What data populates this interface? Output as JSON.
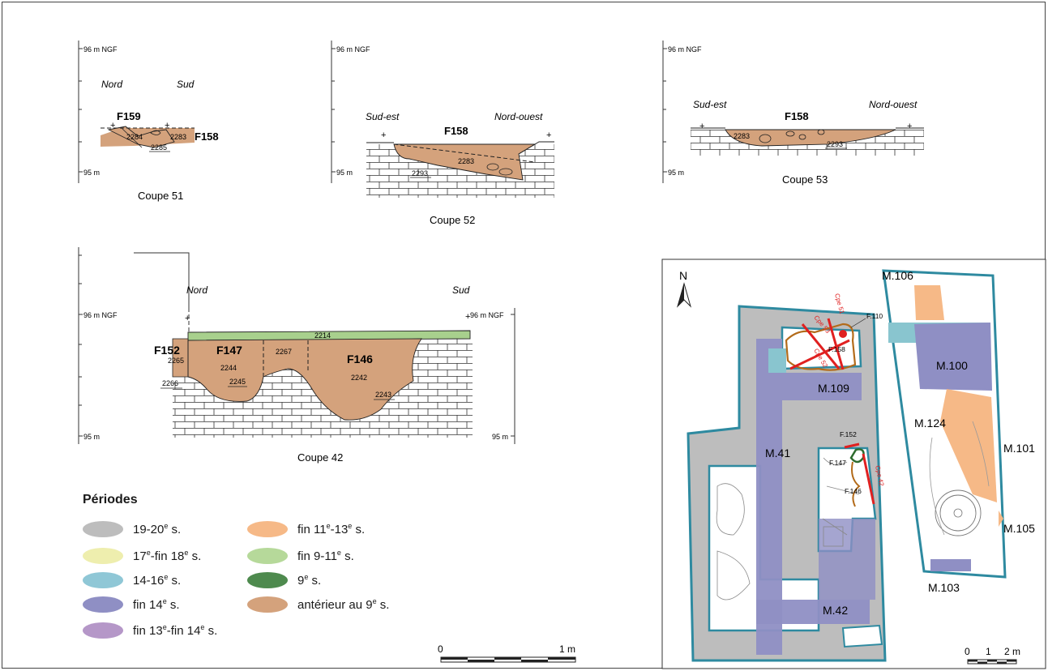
{
  "colors": {
    "brown_fill": "#d4a27c",
    "green_fill": "#a8d08d",
    "purple_fill": "#8f8fc4",
    "orange_fill": "#f6b987",
    "teal_fill": "#89c5cf",
    "gray_fill": "#bdbdbd",
    "red": "#e02020"
  },
  "sections": {
    "c51": {
      "caption": "Coupe 51",
      "top": "96 m NGF",
      "bottom": "95 m",
      "left": "Nord",
      "right": "Sud",
      "f1": "F159",
      "f2": "F158",
      "n1": "2284",
      "n2": "2283",
      "n3": "2285"
    },
    "c52": {
      "caption": "Coupe 52",
      "top": "96 m NGF",
      "bottom": "95 m",
      "left": "Sud-est",
      "right": "Nord-ouest",
      "f1": "F158",
      "n1": "2283",
      "n2": "2293"
    },
    "c53": {
      "caption": "Coupe 53",
      "top": "96 m NGF",
      "bottom": "95 m",
      "left": "Sud-est",
      "right": "Nord-ouest",
      "f1": "F158",
      "n1": "2283",
      "n2": "2293"
    },
    "c42": {
      "caption": "Coupe 42",
      "top": "96 m NGF",
      "top_right": "96 m NGF",
      "bottom": "95 m",
      "bottom_right": "95 m",
      "left": "Nord",
      "right": "Sud",
      "f152": "F152",
      "f147": "F147",
      "f146": "F146",
      "n2214": "2214",
      "n2265": "2265",
      "n2244": "2244",
      "n2267": "2267",
      "n2242": "2242",
      "n2245": "2245",
      "n2266": "2266",
      "n2243": "2243"
    }
  },
  "scalebar": {
    "zero": "0",
    "one": "1 m"
  },
  "legend": {
    "title": "Périodes",
    "items": [
      {
        "label": "19-20",
        "sup": "e",
        "tail": " s.",
        "color": "#bdbdbd"
      },
      {
        "label": "17",
        "sup": "e",
        "tail": "-fin 18",
        "sup2": "e",
        "tail2": " s.",
        "color": "#eeeeae"
      },
      {
        "label": "14-16",
        "sup": "e",
        "tail": " s.",
        "color": "#8fc7d6"
      },
      {
        "label": "fin 14",
        "sup": "e",
        "tail": " s.",
        "color": "#8f8fc4"
      },
      {
        "label": "fin 13",
        "sup": "e",
        "tail": "-fin 14",
        "sup2": "e",
        "tail2": " s.",
        "color": "#b597c8"
      },
      {
        "label": "fin 11",
        "sup": "e",
        "tail": "-13",
        "sup2": "e",
        "tail2": " s.",
        "color": "#f6b987"
      },
      {
        "label": "fin 9-11",
        "sup": "e",
        "tail": " s.",
        "color": "#b6d99a"
      },
      {
        "label": "9",
        "sup": "e",
        "tail": " s.",
        "color": "#4e8a4e"
      },
      {
        "label": "antérieur au 9",
        "sup": "e",
        "tail": " s.",
        "color": "#d4a27c"
      }
    ]
  },
  "plan": {
    "north": "N",
    "walls": {
      "m106": "M.106",
      "m100": "M.100",
      "m109": "M.109",
      "m124": "M.124",
      "m41": "M.41",
      "m101": "M.101",
      "m105": "M.105",
      "m42": "M.42",
      "m103": "M.103"
    },
    "features": {
      "f110": "F.110",
      "f158": "F.158",
      "f152": "F.152",
      "f147": "F.147",
      "f146": "F.146"
    },
    "cuts": {
      "c53": "Cpe 53",
      "c51": "Cpe 51",
      "c52": "Cpe 52",
      "c42": "Cpe 42"
    },
    "scale": {
      "zero": "0",
      "one": "1",
      "two": "2 m"
    }
  }
}
